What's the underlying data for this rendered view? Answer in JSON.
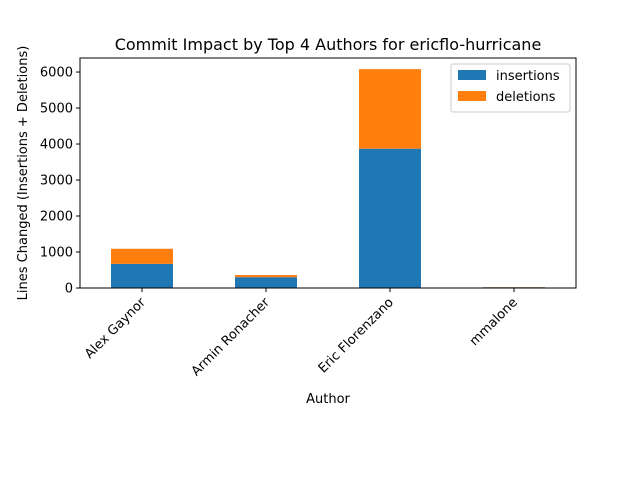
{
  "chart_data": {
    "type": "bar",
    "stacked": true,
    "title": "Commit Impact by Top 4 Authors for ericflo-hurricane",
    "xlabel": "Author",
    "ylabel": "Lines Changed (Insertions + Deletions)",
    "categories": [
      "Alex Gaynor",
      "Armin Ronacher",
      "Eric Florenzano",
      "mmalone"
    ],
    "series": [
      {
        "name": "insertions",
        "color": "#1f77b4",
        "values": [
          670,
          300,
          3870,
          20
        ]
      },
      {
        "name": "deletions",
        "color": "#ff7f0e",
        "values": [
          420,
          60,
          2210,
          5
        ]
      }
    ],
    "ylim": [
      0,
      6390
    ],
    "yticks": [
      0,
      1000,
      2000,
      3000,
      4000,
      5000,
      6000
    ],
    "grid": false,
    "legend_position": "top-right"
  }
}
